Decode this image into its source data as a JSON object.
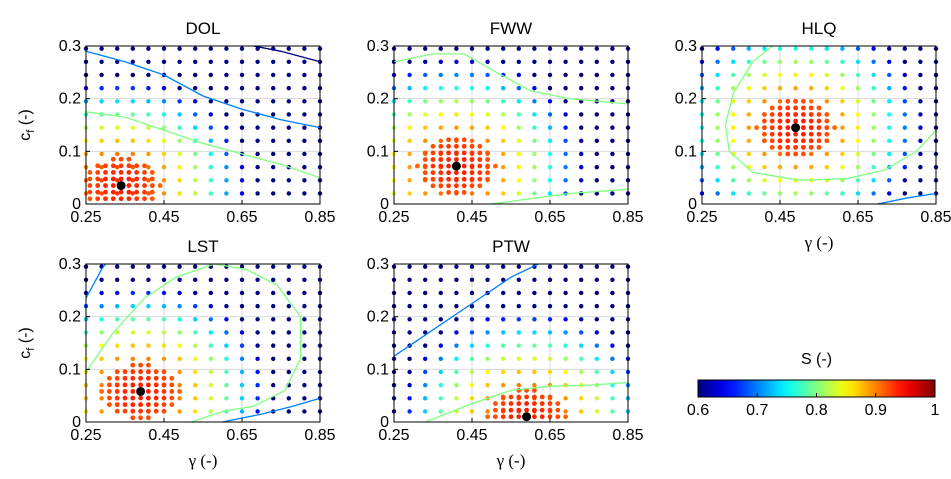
{
  "chart_data": [
    {
      "type": "scatter",
      "title": "DOL",
      "ylabel_main": "c",
      "ylabel_sub": "f",
      "ylabel_unit": " (-)",
      "xlabel": "",
      "xlim": [
        0.25,
        0.85
      ],
      "ylim": [
        0,
        0.3
      ],
      "xticks": [
        "0.25",
        "0.45",
        "0.65",
        "0.85"
      ],
      "yticks": [
        "0",
        "0.1",
        "0.2",
        "0.3"
      ],
      "optimum": {
        "x": 0.34,
        "y": 0.035
      },
      "contours": [
        {
          "level": 0.7,
          "points": [
            [
              0.25,
              0.29
            ],
            [
              0.35,
              0.27
            ],
            [
              0.45,
              0.245
            ],
            [
              0.55,
              0.205
            ],
            [
              0.65,
              0.18
            ],
            [
              0.75,
              0.16
            ],
            [
              0.85,
              0.145
            ]
          ]
        },
        {
          "level": 0.8,
          "points": [
            [
              0.25,
              0.175
            ],
            [
              0.35,
              0.165
            ],
            [
              0.45,
              0.14
            ],
            [
              0.55,
              0.115
            ],
            [
              0.65,
              0.095
            ],
            [
              0.75,
              0.075
            ],
            [
              0.85,
              0.05
            ]
          ]
        },
        {
          "level": 0.6,
          "points": [
            [
              0.68,
              0.3
            ],
            [
              0.75,
              0.29
            ],
            [
              0.85,
              0.27
            ]
          ]
        }
      ]
    },
    {
      "type": "scatter",
      "title": "FWW",
      "xlabel": "",
      "xlim": [
        0.25,
        0.85
      ],
      "ylim": [
        0,
        0.3
      ],
      "xticks": [
        "0.25",
        "0.45",
        "0.65",
        "0.85"
      ],
      "yticks": [
        "0",
        "0.1",
        "0.2",
        "0.3"
      ],
      "optimum": {
        "x": 0.41,
        "y": 0.072
      },
      "contours": [
        {
          "level": 0.8,
          "points": [
            [
              0.25,
              0.27
            ],
            [
              0.35,
              0.285
            ],
            [
              0.43,
              0.285
            ],
            [
              0.5,
              0.255
            ],
            [
              0.6,
              0.215
            ],
            [
              0.7,
              0.2
            ],
            [
              0.85,
              0.19
            ]
          ]
        },
        {
          "level": 0.8,
          "points": [
            [
              0.5,
              0.0
            ],
            [
              0.6,
              0.01
            ],
            [
              0.7,
              0.02
            ],
            [
              0.85,
              0.028
            ]
          ]
        }
      ]
    },
    {
      "type": "scatter",
      "title": "HLQ",
      "xlabel": "γ (-)",
      "xlim": [
        0.25,
        0.85
      ],
      "ylim": [
        0,
        0.3
      ],
      "xticks": [
        "0.25",
        "0.45",
        "0.65",
        "0.85"
      ],
      "yticks": [
        "0",
        "0.1",
        "0.2",
        "0.3"
      ],
      "optimum": {
        "x": 0.49,
        "y": 0.145
      },
      "contours": [
        {
          "level": 0.8,
          "points": [
            [
              0.43,
              0.3
            ],
            [
              0.38,
              0.27
            ],
            [
              0.33,
              0.21
            ],
            [
              0.31,
              0.15
            ],
            [
              0.32,
              0.1
            ],
            [
              0.38,
              0.06
            ],
            [
              0.5,
              0.045
            ],
            [
              0.62,
              0.048
            ],
            [
              0.72,
              0.065
            ],
            [
              0.8,
              0.1
            ],
            [
              0.85,
              0.14
            ]
          ]
        },
        {
          "level": 0.7,
          "points": [
            [
              0.7,
              0.0
            ],
            [
              0.78,
              0.012
            ],
            [
              0.85,
              0.02
            ]
          ]
        }
      ]
    },
    {
      "type": "scatter",
      "title": "LST",
      "ylabel_main": "c",
      "ylabel_sub": "f",
      "ylabel_unit": " (-)",
      "xlabel": "γ (-)",
      "xlim": [
        0.25,
        0.85
      ],
      "ylim": [
        0,
        0.3
      ],
      "xticks": [
        "0.25",
        "0.45",
        "0.65",
        "0.85"
      ],
      "yticks": [
        "0",
        "0.1",
        "0.2",
        "0.3"
      ],
      "optimum": {
        "x": 0.39,
        "y": 0.058
      },
      "contours": [
        {
          "level": 0.8,
          "points": [
            [
              0.25,
              0.095
            ],
            [
              0.32,
              0.17
            ],
            [
              0.4,
              0.235
            ],
            [
              0.48,
              0.275
            ],
            [
              0.58,
              0.3
            ],
            [
              0.66,
              0.29
            ],
            [
              0.74,
              0.26
            ],
            [
              0.8,
              0.2
            ],
            [
              0.8,
              0.12
            ],
            [
              0.76,
              0.06
            ],
            [
              0.68,
              0.03
            ],
            [
              0.6,
              0.02
            ],
            [
              0.52,
              0.0
            ]
          ]
        },
        {
          "level": 0.7,
          "points": [
            [
              0.25,
              0.235
            ],
            [
              0.29,
              0.29
            ],
            [
              0.3,
              0.3
            ]
          ]
        },
        {
          "level": 0.7,
          "points": [
            [
              0.6,
              0.0
            ],
            [
              0.7,
              0.015
            ],
            [
              0.78,
              0.03
            ],
            [
              0.85,
              0.045
            ]
          ]
        }
      ]
    },
    {
      "type": "scatter",
      "title": "PTW",
      "xlabel": "γ (-)",
      "xlim": [
        0.25,
        0.85
      ],
      "ylim": [
        0,
        0.3
      ],
      "xticks": [
        "0.25",
        "0.45",
        "0.65",
        "0.85"
      ],
      "yticks": [
        "0",
        "0.1",
        "0.2",
        "0.3"
      ],
      "optimum": {
        "x": 0.59,
        "y": 0.01
      },
      "contours": [
        {
          "level": 0.7,
          "points": [
            [
              0.25,
              0.125
            ],
            [
              0.35,
              0.175
            ],
            [
              0.45,
              0.225
            ],
            [
              0.55,
              0.275
            ],
            [
              0.62,
              0.3
            ]
          ]
        },
        {
          "level": 0.8,
          "points": [
            [
              0.33,
              0.0
            ],
            [
              0.45,
              0.035
            ],
            [
              0.55,
              0.06
            ],
            [
              0.65,
              0.068
            ],
            [
              0.75,
              0.07
            ],
            [
              0.85,
              0.075
            ]
          ]
        }
      ]
    }
  ],
  "colorbar": {
    "title": "S (-)",
    "ticks": [
      "0.6",
      "0.7",
      "0.8",
      "0.9",
      "1"
    ],
    "range": [
      0.6,
      1.0
    ]
  }
}
